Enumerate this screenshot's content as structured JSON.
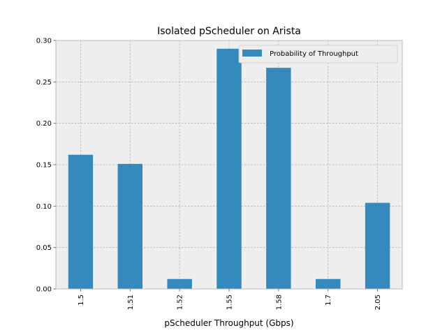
{
  "chart_data": {
    "type": "bar",
    "title": "Isolated pScheduler on Arista",
    "xlabel": "pScheduler Throughput (Gbps)",
    "ylabel": "",
    "categories": [
      "1.5",
      "1.51",
      "1.52",
      "1.55",
      "1.58",
      "1.7",
      "2.05"
    ],
    "series": [
      {
        "name": "Probability of Throughput",
        "values": [
          0.162,
          0.151,
          0.012,
          0.29,
          0.267,
          0.012,
          0.104
        ]
      }
    ],
    "ylim": [
      0,
      0.3
    ],
    "yticks": [
      "0.00",
      "0.05",
      "0.10",
      "0.15",
      "0.20",
      "0.25",
      "0.30"
    ],
    "grid": true,
    "legend_position": "top-right",
    "colors": {
      "bar": "#348ABD",
      "plot_bg": "#EEEEEE",
      "grid": "#B2B2B2",
      "spine": "#BCBCBC"
    }
  }
}
